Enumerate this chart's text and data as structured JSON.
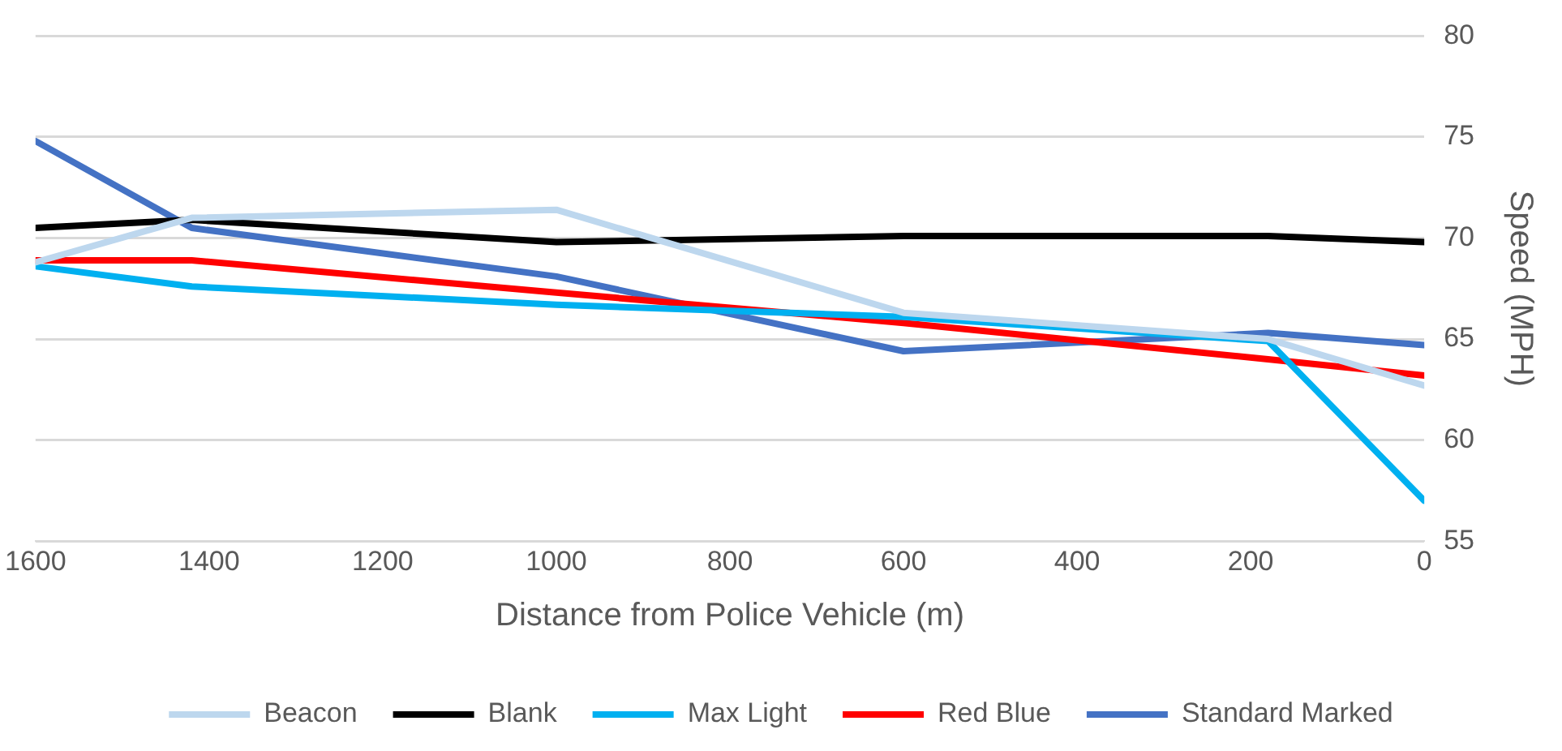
{
  "chart_data": {
    "type": "line",
    "xlabel": "Distance from Police Vehicle (m)",
    "ylabel": "Speed (MPH)",
    "x": [
      1600,
      1420,
      1000,
      600,
      180,
      0
    ],
    "series": [
      {
        "name": "Beacon",
        "color": "#bdd7ee",
        "values": [
          68.8,
          71.0,
          71.4,
          66.3,
          65.0,
          62.7
        ]
      },
      {
        "name": "Blank",
        "color": "#000000",
        "values": [
          70.5,
          70.9,
          69.8,
          70.1,
          70.1,
          69.8
        ]
      },
      {
        "name": "Max Light",
        "color": "#00b0f0",
        "values": [
          68.6,
          67.6,
          66.7,
          66.1,
          64.9,
          57.0
        ]
      },
      {
        "name": "Red Blue",
        "color": "#ff0000",
        "values": [
          68.9,
          68.9,
          67.3,
          65.8,
          64.0,
          63.2
        ]
      },
      {
        "name": "Standard Marked",
        "color": "#4472c4",
        "values": [
          74.8,
          70.5,
          68.1,
          64.4,
          65.3,
          64.7
        ]
      }
    ],
    "xlim": [
      1600,
      0
    ],
    "xticks": [
      1600,
      1400,
      1200,
      1000,
      800,
      600,
      400,
      200,
      0
    ],
    "ylim": [
      55,
      80
    ],
    "yticks": [
      55,
      60,
      65,
      70,
      75,
      80
    ],
    "grid": "y",
    "legend": "bottom",
    "marker": "none",
    "line_style": "solid"
  }
}
